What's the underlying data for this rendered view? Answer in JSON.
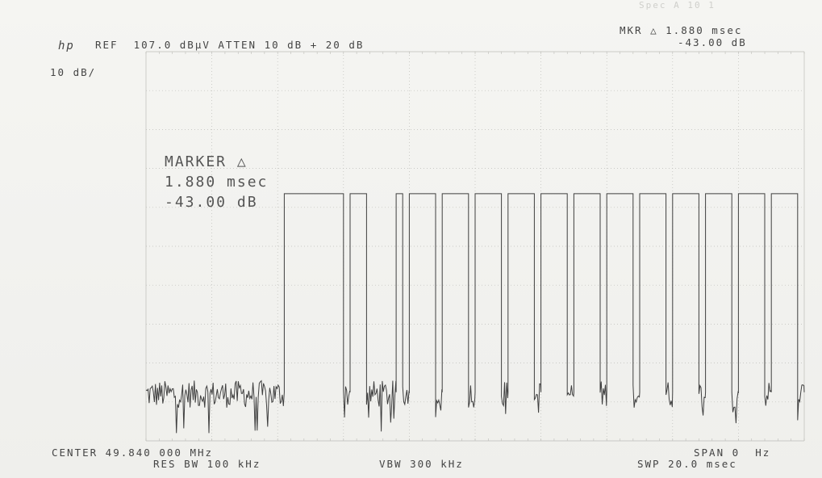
{
  "header": {
    "logo": "hp",
    "ref_text": "REF  107.0 dBµV ATTEN 10 dB + 20 dB",
    "mkr_line1": "MKR △ 1.880 msec",
    "mkr_line2": "-43.00 dB",
    "scale": "10 dB/",
    "top_right": "Spec A 10 1"
  },
  "marker": {
    "title": "MARKER △",
    "time": "1.880 msec",
    "level": "-43.00 dB"
  },
  "footer": {
    "center": "CENTER 49.840 000 MHz",
    "res_bw": "RES BW 100 kHz",
    "vbw": "VBW 300 kHz",
    "span": "SPAN 0  Hz",
    "swp": "SWP 20.0 msec"
  },
  "chart_data": {
    "type": "line",
    "title": "",
    "xlabel": "",
    "ylabel": "",
    "x_unit": "msec",
    "y_unit": "dBµV",
    "xlim": [
      0,
      20
    ],
    "ylim": [
      7,
      107
    ],
    "grid": true,
    "grid_divisions": {
      "x": 10,
      "y": 10
    },
    "series": [
      {
        "name": "",
        "segments": [
          {
            "type": "noise",
            "x": [
              0,
              4.2
            ],
            "y_level": 19.5,
            "y_spread": [
              -4,
              3
            ],
            "spike_low": 8
          },
          {
            "type": "high",
            "x": [
              4.2,
              6.0
            ],
            "y": 70.5
          },
          {
            "type": "noise",
            "x": [
              6.0,
              6.2
            ],
            "y_level": 19.5,
            "y_spread": [
              -4,
              3
            ],
            "spike_low": 12
          },
          {
            "type": "high",
            "x": [
              6.2,
              6.7
            ],
            "y": 70.5
          },
          {
            "type": "noise",
            "x": [
              6.7,
              7.6
            ],
            "y_level": 19.5,
            "y_spread": [
              -4,
              3
            ],
            "spike_low": 9
          },
          {
            "type": "high",
            "x": [
              7.6,
              7.8
            ],
            "y": 70.5
          },
          {
            "type": "noise",
            "x": [
              7.8,
              8.0
            ],
            "y_level": 19.5,
            "y_spread": [
              -4,
              3
            ],
            "spike_low": 13
          },
          {
            "type": "high",
            "x": [
              8.0,
              8.8
            ],
            "y": 70.5
          },
          {
            "type": "noise",
            "x": [
              8.8,
              9.0
            ],
            "y_level": 19.5,
            "y_spread": [
              -4,
              3
            ],
            "spike_low": 12
          },
          {
            "type": "high",
            "x": [
              9.0,
              9.8
            ],
            "y": 70.5
          },
          {
            "type": "noise",
            "x": [
              9.8,
              10.0
            ],
            "y_level": 19.5,
            "y_spread": [
              -4,
              3
            ],
            "spike_low": 14
          },
          {
            "type": "high",
            "x": [
              10.0,
              10.8
            ],
            "y": 70.5
          },
          {
            "type": "noise",
            "x": [
              10.8,
              11.0
            ],
            "y_level": 19.5,
            "y_spread": [
              -4,
              3
            ],
            "spike_low": 13
          },
          {
            "type": "high",
            "x": [
              11.0,
              11.8
            ],
            "y": 70.5
          },
          {
            "type": "noise",
            "x": [
              11.8,
              12.0
            ],
            "y_level": 19.5,
            "y_spread": [
              -4,
              3
            ],
            "spike_low": 12
          },
          {
            "type": "high",
            "x": [
              12.0,
              12.8
            ],
            "y": 70.5
          },
          {
            "type": "noise",
            "x": [
              12.8,
              13.0
            ],
            "y_level": 19.5,
            "y_spread": [
              -4,
              3
            ],
            "spike_low": 14
          },
          {
            "type": "high",
            "x": [
              13.0,
              13.8
            ],
            "y": 70.5
          },
          {
            "type": "noise",
            "x": [
              13.8,
              14.0
            ],
            "y_level": 19.5,
            "y_spread": [
              -4,
              3
            ],
            "spike_low": 13
          },
          {
            "type": "high",
            "x": [
              14.0,
              14.8
            ],
            "y": 70.5
          },
          {
            "type": "noise",
            "x": [
              14.8,
              15.0
            ],
            "y_level": 19.5,
            "y_spread": [
              -4,
              3
            ],
            "spike_low": 12
          },
          {
            "type": "high",
            "x": [
              15.0,
              15.8
            ],
            "y": 70.5
          },
          {
            "type": "noise",
            "x": [
              15.8,
              16.0
            ],
            "y_level": 19.5,
            "y_spread": [
              -4,
              3
            ],
            "spike_low": 13
          },
          {
            "type": "high",
            "x": [
              16.0,
              16.8
            ],
            "y": 70.5
          },
          {
            "type": "noise",
            "x": [
              16.8,
              17.0
            ],
            "y_level": 19.5,
            "y_spread": [
              -4,
              3
            ],
            "spike_low": 12
          },
          {
            "type": "high",
            "x": [
              17.0,
              17.8
            ],
            "y": 70.5
          },
          {
            "type": "noise",
            "x": [
              17.8,
              18.0
            ],
            "y_level": 19.5,
            "y_spread": [
              -4,
              3
            ],
            "spike_low": 11
          },
          {
            "type": "high",
            "x": [
              18.0,
              18.8
            ],
            "y": 70.5
          },
          {
            "type": "noise",
            "x": [
              18.8,
              19.0
            ],
            "y_level": 19.5,
            "y_spread": [
              -4,
              3
            ],
            "spike_low": 12
          },
          {
            "type": "high",
            "x": [
              19.0,
              19.8
            ],
            "y": 70.5
          },
          {
            "type": "noise",
            "x": [
              19.8,
              20.0
            ],
            "y_level": 19.5,
            "y_spread": [
              -4,
              3
            ],
            "spike_low": 11
          }
        ]
      }
    ],
    "marker_delta": {
      "x_msec": 1.88,
      "y_db": -43.0
    }
  },
  "colors": {
    "paper": "#f2f2ef",
    "grid": "#bdbdb8",
    "trace": "#3f3f3f",
    "text": "#444444"
  }
}
